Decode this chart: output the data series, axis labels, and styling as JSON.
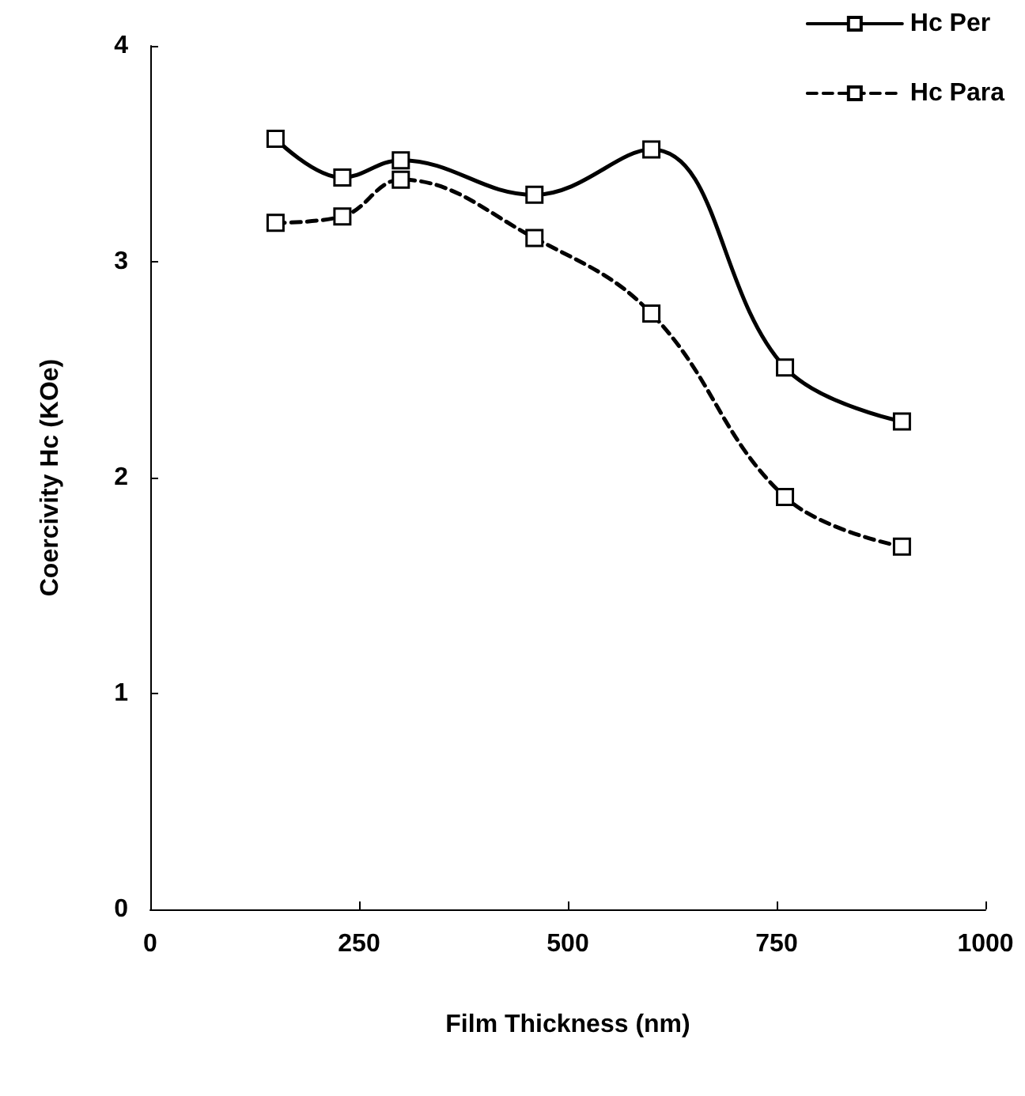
{
  "chart_data": {
    "type": "line",
    "xlabel": "Film Thickness (nm)",
    "ylabel": "Coercivity Hc (KOe)",
    "x": [
      150,
      230,
      300,
      460,
      600,
      760,
      900
    ],
    "series": [
      {
        "name": "Hc Per",
        "color": "#000000",
        "line_style": "solid",
        "values": [
          3.57,
          3.39,
          3.47,
          3.31,
          3.52,
          2.51,
          2.26
        ]
      },
      {
        "name": "Hc Para",
        "color": "#000000",
        "line_style": "dashed",
        "values": [
          3.18,
          3.21,
          3.38,
          3.11,
          2.76,
          1.91,
          1.68
        ]
      }
    ],
    "xlim": [
      0,
      1000
    ],
    "xticks": [
      0,
      250,
      500,
      750,
      1000
    ],
    "ylim": [
      0,
      4
    ],
    "yticks": [
      0,
      1,
      2,
      3,
      4
    ],
    "grid": false,
    "legend": "top right",
    "marker": "square"
  }
}
